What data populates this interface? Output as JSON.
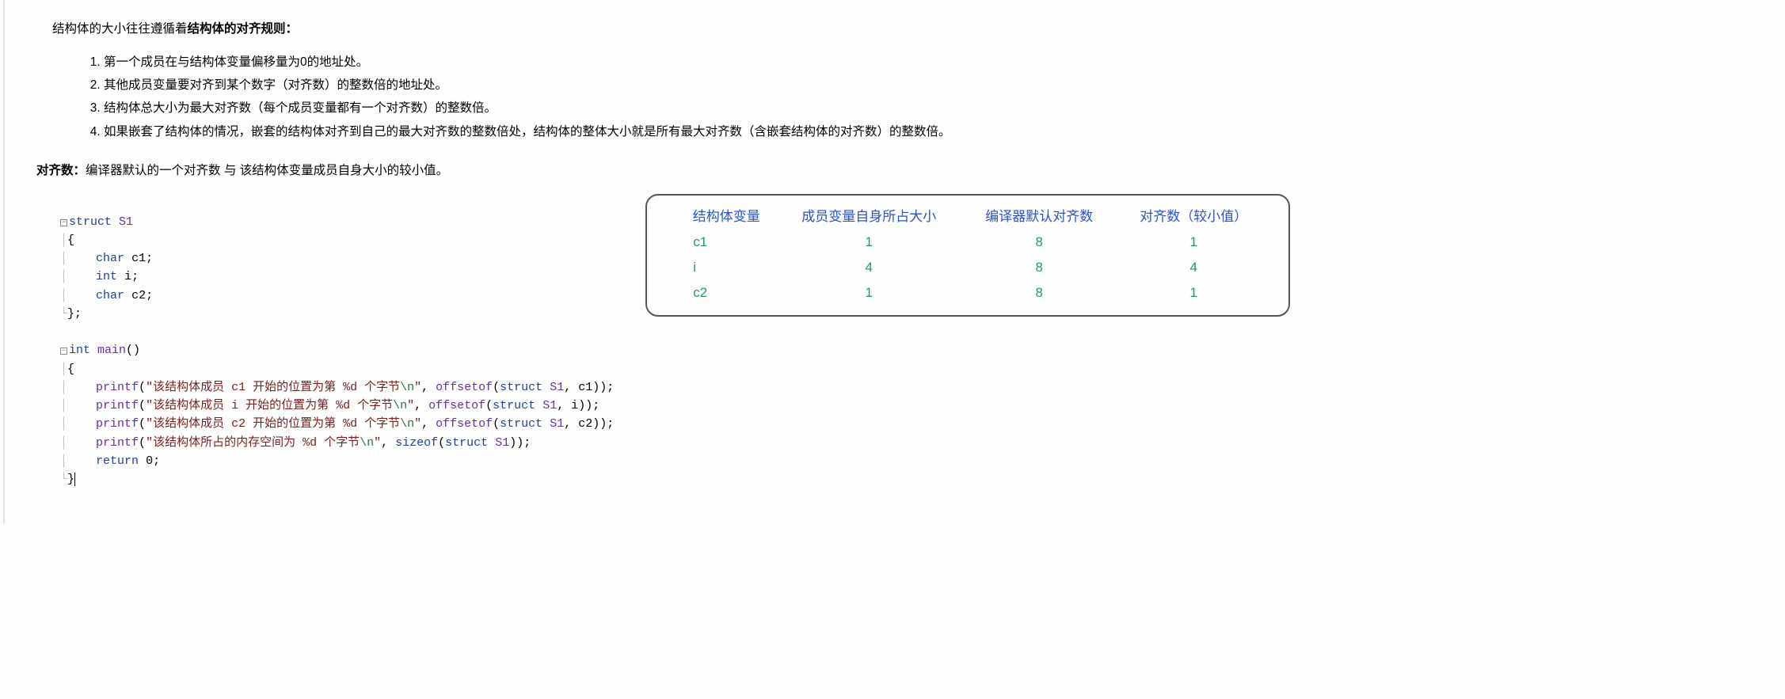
{
  "intro_prefix": "结构体的大小往往遵循着",
  "intro_bold": "结构体的对齐规则：",
  "rules": [
    "第一个成员在与结构体变量偏移量为0的地址处。",
    "其他成员变量要对齐到某个数字（对齐数）的整数倍的地址处。",
    "结构体总大小为最大对齐数（每个成员变量都有一个对齐数）的整数倍。",
    "如果嵌套了结构体的情况，嵌套的结构体对齐到自己的最大对齐数的整数倍处，结构体的整体大小就是所有最大对齐数（含嵌套结构体的对齐数）的整数倍。"
  ],
  "def_label": "对齐数：",
  "def_text": "编译器默认的一个对齐数 与 该结构体变量成员自身大小的较小值。",
  "table": {
    "headers": [
      "结构体变量",
      "成员变量自身所占大小",
      "编译器默认对齐数",
      "对齐数（较小值）"
    ],
    "rows": [
      {
        "var": "c1",
        "self": "1",
        "def": "8",
        "align": "1"
      },
      {
        "var": "i",
        "self": "4",
        "def": "8",
        "align": "4"
      },
      {
        "var": "c2",
        "self": "1",
        "def": "8",
        "align": "1"
      }
    ],
    "border_color": "#555555",
    "header_color": "#2952cc",
    "value_color": "#1a9e57"
  },
  "code": {
    "struct_kw": "struct",
    "struct_name": "S1",
    "members": [
      {
        "type": "char",
        "name": "c1"
      },
      {
        "type": "int",
        "name": "i"
      },
      {
        "type": "char",
        "name": "c2"
      }
    ],
    "int_kw": "int",
    "main_name": "main",
    "printf_name": "printf",
    "offsetof_name": "offsetof",
    "sizeof_kw": "sizeof",
    "return_kw": "return",
    "strings": {
      "s1a": "\"该结构体成员 c1 开始的位置为第 %d 个字节",
      "s1b": "\"",
      "s2a": "\"该结构体成员 i 开始的位置为第 %d 个字节",
      "s3a": "\"该结构体成员 c2 开始的位置为第 %d 个字节",
      "s4a": "\"该结构体所占的内存空间为 %d 个字节"
    },
    "esc": "\\n",
    "struct_ref": "struct",
    "args": {
      "a1": "c1",
      "a2": "i",
      "a3": "c2"
    },
    "ret_val": "0"
  }
}
